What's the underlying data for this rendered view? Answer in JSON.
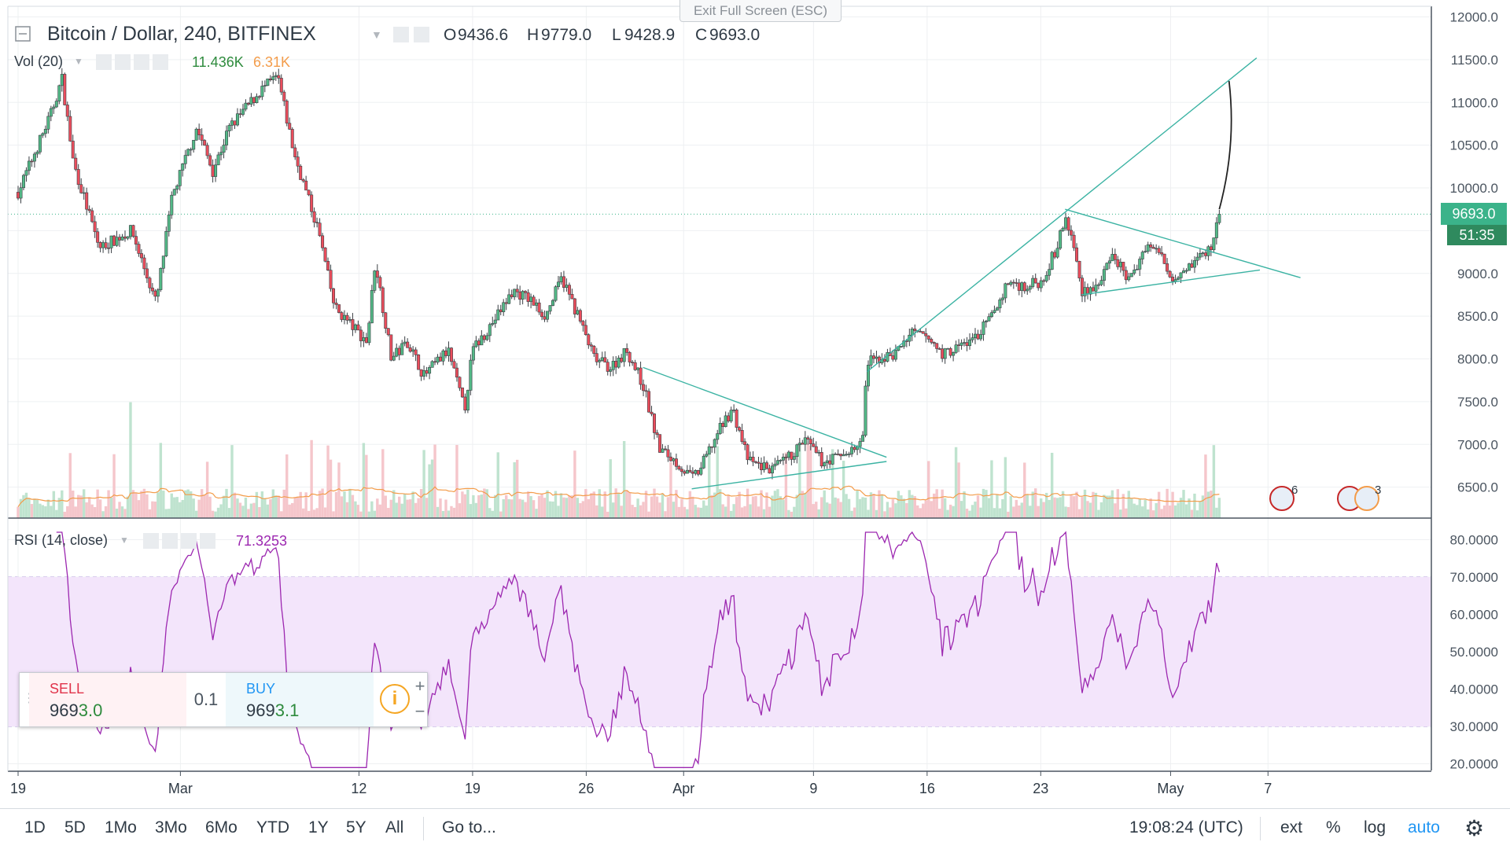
{
  "header": {
    "symbol": "Bitcoin / Dollar, 240, BITFINEX",
    "ohlc": {
      "o_label": "O",
      "o": "9436.6",
      "h_label": "H",
      "h": "9779.0",
      "l_label": "L",
      "l": "9428.9",
      "c_label": "C",
      "c": "9693.0"
    },
    "exit_fullscreen": "Exit Full Screen (ESC)"
  },
  "volume_indicator": {
    "label": "Vol (20)",
    "value_green": "11.436K",
    "value_orange": "6.31K"
  },
  "rsi_indicator": {
    "label": "RSI (14, close)",
    "value": "71.3253"
  },
  "last_price": {
    "value": "9693.0",
    "countdown": "51:35"
  },
  "trade_panel": {
    "sell_label": "SELL",
    "sell_price_main": "969",
    "sell_price_tail": "3.0",
    "quantity": "0.1",
    "buy_label": "BUY",
    "buy_price_main": "969",
    "buy_price_tail": "3.1"
  },
  "bottom_bar": {
    "ranges": [
      "1D",
      "5D",
      "1Mo",
      "3Mo",
      "6Mo",
      "YTD",
      "1Y",
      "5Y",
      "All"
    ],
    "goto": "Go to...",
    "time": "19:08:24 (UTC)",
    "ext": "ext",
    "percent": "%",
    "log": "log",
    "auto": "auto"
  },
  "events": {
    "count_1": "6",
    "count_2": "3"
  },
  "colors": {
    "up": "#53b987",
    "down": "#eb4d5c",
    "trend": "#3bb3a3",
    "rsi": "#9c27b0",
    "rsi_band": "#f3e5fb",
    "accent": "#2196f3",
    "price_tag": "#3bb38a"
  },
  "chart_data": {
    "type": "candlestick",
    "title": "Bitcoin / Dollar, 240, BITFINEX",
    "interval": "240",
    "price_axis": {
      "min": 6250,
      "max": 12100,
      "ticks": [
        "12000.0",
        "11500.0",
        "11000.0",
        "10500.0",
        "10000.0",
        "9500.0",
        "9000.0",
        "8500.0",
        "8000.0",
        "7500.0",
        "7000.0",
        "6500.0"
      ]
    },
    "rsi_axis": {
      "min": 18,
      "max": 83,
      "ticks": [
        "80.0000",
        "70.0000",
        "60.0000",
        "50.0000",
        "40.0000",
        "30.0000",
        "20.0000"
      ],
      "overbought": 70,
      "oversold": 30
    },
    "time_axis": [
      {
        "label": "19",
        "day": 0
      },
      {
        "label": "Mar",
        "day": 10
      },
      {
        "label": "12",
        "day": 21
      },
      {
        "label": "19",
        "day": 28
      },
      {
        "label": "26",
        "day": 35
      },
      {
        "label": "Apr",
        "day": 41
      },
      {
        "label": "9",
        "day": 49
      },
      {
        "label": "16",
        "day": 56
      },
      {
        "label": "23",
        "day": 63
      },
      {
        "label": "May",
        "day": 71
      },
      {
        "label": "7",
        "day": 77
      }
    ],
    "candle_count": 439,
    "price_path": [
      [
        0,
        9950
      ],
      [
        2,
        10850
      ],
      [
        2.7,
        11280
      ],
      [
        3.4,
        10300
      ],
      [
        5,
        9300
      ],
      [
        7,
        9500
      ],
      [
        8.5,
        8650
      ],
      [
        9.5,
        9900
      ],
      [
        11,
        10700
      ],
      [
        12,
        10200
      ],
      [
        13,
        10700
      ],
      [
        15,
        11150
      ],
      [
        16,
        11300
      ],
      [
        17,
        10400
      ],
      [
        18,
        9800
      ],
      [
        18.5,
        9500
      ],
      [
        19.5,
        8600
      ],
      [
        20.5,
        8400
      ],
      [
        21.5,
        8200
      ],
      [
        22,
        9150
      ],
      [
        23,
        8000
      ],
      [
        24,
        8200
      ],
      [
        25,
        7800
      ],
      [
        26.5,
        8100
      ],
      [
        27.5,
        7400
      ],
      [
        28,
        8100
      ],
      [
        29.5,
        8500
      ],
      [
        30.5,
        8800
      ],
      [
        31.5,
        8700
      ],
      [
        32.5,
        8500
      ],
      [
        33.5,
        8950
      ],
      [
        34.5,
        8500
      ],
      [
        35.5,
        8000
      ],
      [
        36.5,
        7900
      ],
      [
        37.5,
        8100
      ],
      [
        38.5,
        7700
      ],
      [
        39.5,
        6950
      ],
      [
        40.5,
        6800
      ],
      [
        41.5,
        6600
      ],
      [
        42,
        6700
      ],
      [
        43,
        7100
      ],
      [
        44,
        7420
      ],
      [
        45,
        6800
      ],
      [
        46.5,
        6700
      ],
      [
        47.5,
        6850
      ],
      [
        48.5,
        7050
      ],
      [
        49.5,
        6800
      ],
      [
        50.5,
        6850
      ],
      [
        51.5,
        6950
      ],
      [
        52,
        7000
      ],
      [
        52.3,
        7950
      ],
      [
        53,
        8000
      ],
      [
        54,
        8050
      ],
      [
        55,
        8300
      ],
      [
        56,
        8250
      ],
      [
        57,
        8050
      ],
      [
        58,
        8150
      ],
      [
        59,
        8250
      ],
      [
        60,
        8500
      ],
      [
        61,
        8900
      ],
      [
        62,
        8850
      ],
      [
        63,
        8900
      ],
      [
        64,
        9300
      ],
      [
        64.5,
        9650
      ],
      [
        65,
        9350
      ],
      [
        65.5,
        8800
      ],
      [
        66.5,
        8850
      ],
      [
        67.5,
        9200
      ],
      [
        68.5,
        8900
      ],
      [
        69.5,
        9350
      ],
      [
        70.5,
        9200
      ],
      [
        71,
        8950
      ],
      [
        72.5,
        9150
      ],
      [
        73.5,
        9300
      ],
      [
        74,
        9693
      ]
    ],
    "trendlines": [
      {
        "name": "falling wedge upper",
        "from": [
          38.5,
          7900
        ],
        "to": [
          53.5,
          6850
        ]
      },
      {
        "name": "falling wedge lower",
        "from": [
          41.5,
          6480
        ],
        "to": [
          53.5,
          6800
        ]
      },
      {
        "name": "rising support",
        "from": [
          52.3,
          7850
        ],
        "to": [
          76.3,
          11520
        ]
      },
      {
        "name": "pennant upper",
        "from": [
          64.5,
          9750
        ],
        "to": [
          79,
          8950
        ]
      },
      {
        "name": "pennant lower",
        "from": [
          65.5,
          8750
        ],
        "to": [
          76.5,
          9040
        ]
      },
      {
        "name": "projection",
        "from": [
          74,
          9750
        ],
        "to": [
          74.6,
          11250
        ]
      }
    ],
    "rsi_last": 71.3253
  }
}
